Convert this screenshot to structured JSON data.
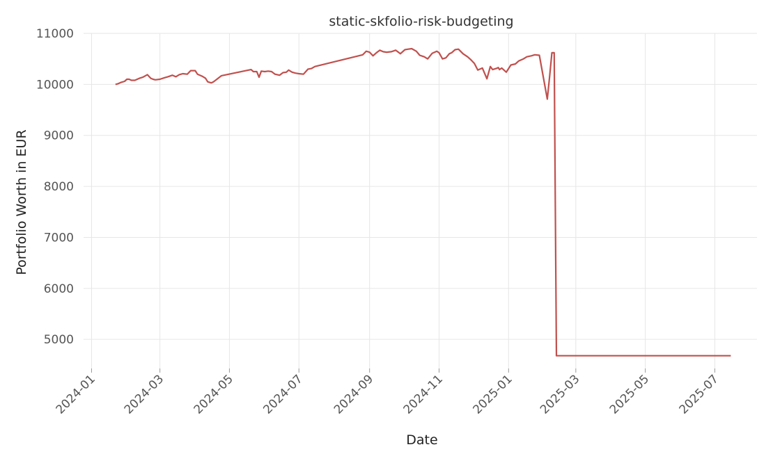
{
  "chart_data": {
    "type": "line",
    "title": "static-skfolio-risk-budgeting",
    "xlabel": "Date",
    "ylabel": "Portfolio Worth in EUR",
    "x_ticks": [
      "2024-01",
      "2024-03",
      "2024-05",
      "2024-07",
      "2024-09",
      "2024-11",
      "2025-01",
      "2025-03",
      "2025-05",
      "2025-07"
    ],
    "y_ticks": [
      5000,
      6000,
      7000,
      8000,
      9000,
      10000,
      11000
    ],
    "xlim": [
      "2023-12-25",
      "2025-08-07"
    ],
    "ylim": [
      4430,
      11000
    ],
    "grid": true,
    "line_color": "#c0504d",
    "series": [
      {
        "x": [
          "2024-01-22",
          "2024-01-24",
          "2024-01-27",
          "2024-01-30",
          "2024-02-01",
          "2024-02-03",
          "2024-02-05",
          "2024-02-08",
          "2024-02-12",
          "2024-02-15",
          "2024-02-19",
          "2024-02-22",
          "2024-02-24",
          "2024-02-26",
          "2024-03-01",
          "2024-03-05",
          "2024-03-08",
          "2024-03-12",
          "2024-03-15",
          "2024-03-18",
          "2024-03-21",
          "2024-03-25",
          "2024-03-28",
          "2024-04-01",
          "2024-04-03",
          "2024-04-07",
          "2024-04-10",
          "2024-04-12",
          "2024-04-15",
          "2024-04-17",
          "2024-04-20",
          "2024-04-24",
          "2024-05-20",
          "2024-05-22",
          "2024-05-25",
          "2024-05-27",
          "2024-05-29",
          "2024-06-01",
          "2024-06-04",
          "2024-06-07",
          "2024-06-10",
          "2024-06-14",
          "2024-06-17",
          "2024-06-20",
          "2024-06-22",
          "2024-06-25",
          "2024-06-28",
          "2024-07-01",
          "2024-07-05",
          "2024-07-09",
          "2024-07-12",
          "2024-07-15",
          "2024-08-26",
          "2024-08-29",
          "2024-09-01",
          "2024-09-04",
          "2024-09-07",
          "2024-09-10",
          "2024-09-13",
          "2024-09-16",
          "2024-09-20",
          "2024-09-24",
          "2024-09-28",
          "2024-10-02",
          "2024-10-05",
          "2024-10-08",
          "2024-10-12",
          "2024-10-15",
          "2024-10-19",
          "2024-10-22",
          "2024-10-26",
          "2024-10-30",
          "2024-11-01",
          "2024-11-04",
          "2024-11-07",
          "2024-11-10",
          "2024-11-12",
          "2024-11-15",
          "2024-11-18",
          "2024-11-22",
          "2024-11-26",
          "2024-11-29",
          "2024-12-02",
          "2024-12-05",
          "2024-12-09",
          "2024-12-13",
          "2024-12-16",
          "2024-12-18",
          "2024-12-21",
          "2024-12-23",
          "2024-12-24",
          "2024-12-26",
          "2024-12-30",
          "2025-01-03",
          "2025-01-07",
          "2025-01-10",
          "2025-01-14",
          "2025-01-17",
          "2025-01-21",
          "2025-01-24",
          "2025-01-28",
          "2025-02-01",
          "2025-02-04",
          "2025-02-06",
          "2025-02-08",
          "2025-02-10",
          "2025-02-12",
          "2025-02-14",
          "2025-02-16",
          "2025-02-18",
          "2025-02-20",
          "2025-07-15"
        ],
        "values": [
          10000,
          10010,
          10040,
          10060,
          10100,
          10100,
          10080,
          10080,
          10120,
          10140,
          10190,
          10120,
          10100,
          10090,
          10100,
          10130,
          10150,
          10180,
          10150,
          10190,
          10210,
          10200,
          10270,
          10270,
          10200,
          10160,
          10120,
          10050,
          10030,
          10050,
          10100,
          10170,
          10290,
          10250,
          10250,
          10140,
          10260,
          10250,
          10260,
          10250,
          10200,
          10180,
          10230,
          10240,
          10280,
          10240,
          10220,
          10210,
          10200,
          10300,
          10310,
          10350,
          10580,
          10650,
          10630,
          10560,
          10620,
          10670,
          10640,
          10630,
          10640,
          10670,
          10600,
          10680,
          10690,
          10700,
          10650,
          10570,
          10540,
          10500,
          10610,
          10650,
          10620,
          10500,
          10520,
          10600,
          10620,
          10680,
          10690,
          10600,
          10540,
          10480,
          10410,
          10280,
          10320,
          10110,
          10350,
          10290,
          10310,
          10330,
          10290,
          10320,
          10240,
          10380,
          10400,
          10460,
          10500,
          10540,
          10560,
          10580,
          10570,
          10080,
          9710,
          10150,
          10620,
          10620,
          4680,
          4680,
          4680,
          4680,
          4680,
          4680
        ]
      }
    ]
  }
}
